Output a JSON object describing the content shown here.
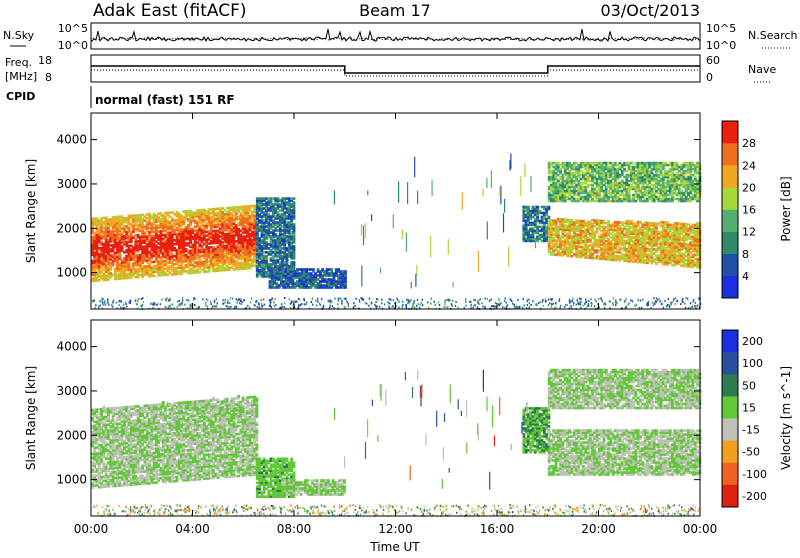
{
  "header": {
    "station": "Adak East (fitACF)",
    "beam": "Beam 17",
    "date": "03/Oct/2013"
  },
  "nsky_panel": {
    "left_label": "N.Sky",
    "right_label": "N.Search",
    "left_ticks": [
      "10^5",
      "10^0"
    ],
    "right_ticks": [
      "10^5",
      "10^0"
    ]
  },
  "freq_panel": {
    "left_label_line1": "Freq.",
    "left_label_line2": "[MHz]",
    "right_label": "Nave",
    "left_ticks": [
      "18",
      "8"
    ],
    "right_ticks": [
      "60",
      "0"
    ],
    "cpid_label": "CPID",
    "cpid_text": "normal (fast) 151 RF"
  },
  "colors": {
    "power_scale": [
      "#1a2ee0",
      "#1f50a8",
      "#2e8a6a",
      "#55b070",
      "#a6d83a",
      "#f0a820",
      "#f07020",
      "#e82010"
    ],
    "velocity_scale": [
      "#1a2ee0",
      "#2a4ea0",
      "#2e7a50",
      "#62c83a",
      "#c0c0b8",
      "#f0a020",
      "#f06020",
      "#e02010"
    ]
  },
  "chart_data": [
    {
      "type": "heatmap",
      "title": "",
      "xlabel": "",
      "ylabel": "Slant Range [km]",
      "x_ticks": [
        "00:00",
        "04:00",
        "08:00",
        "12:00",
        "16:00",
        "20:00",
        "00:00"
      ],
      "y_ticks": [
        "1000",
        "2000",
        "3000",
        "4000"
      ],
      "xlim": [
        0,
        24
      ],
      "ylim": [
        180,
        4600
      ],
      "colorbar": {
        "label": "Power [dB]",
        "ticks": [
          "4",
          "8",
          "12",
          "16",
          "20",
          "24",
          "28"
        ],
        "range": [
          0,
          30
        ]
      },
      "regions": [
        {
          "t0": 0.0,
          "t1": 6.5,
          "r_lo": 800,
          "r_hi": 2200,
          "value": 24,
          "desc": "strong backscatter band rising toward 6 UT"
        },
        {
          "t0": 6.5,
          "t1": 8.0,
          "r_lo": 900,
          "r_hi": 2700,
          "value": 8
        },
        {
          "t0": 7.0,
          "t1": 10.0,
          "r_lo": 650,
          "r_hi": 1100,
          "value": 6
        },
        {
          "t0": 17.0,
          "t1": 18.0,
          "r_lo": 1700,
          "r_hi": 2500,
          "value": 8
        },
        {
          "t0": 18.0,
          "t1": 24.0,
          "r_lo": 1100,
          "r_hi": 2100,
          "value": 20
        },
        {
          "t0": 18.0,
          "t1": 24.0,
          "r_lo": 2600,
          "r_hi": 3500,
          "value": 14
        }
      ]
    },
    {
      "type": "heatmap",
      "title": "",
      "xlabel": "Time UT",
      "ylabel": "Slant Range [km]",
      "x_ticks": [
        "00:00",
        "04:00",
        "08:00",
        "12:00",
        "16:00",
        "20:00",
        "00:00"
      ],
      "y_ticks": [
        "1000",
        "2000",
        "3000",
        "4000"
      ],
      "xlim": [
        0,
        24
      ],
      "ylim": [
        180,
        4600
      ],
      "colorbar": {
        "label": "Velocity [m s^-1]",
        "ticks": [
          "200",
          "100",
          "50",
          "15",
          "-15",
          "-50",
          "-100",
          "-200"
        ],
        "range": [
          -250,
          250
        ]
      },
      "regions": [
        {
          "t0": 0.0,
          "t1": 6.5,
          "r_lo": 800,
          "r_hi": 2600,
          "value": 0,
          "desc": "mostly ground scatter (grey)"
        },
        {
          "t0": 6.5,
          "t1": 8.0,
          "r_lo": 600,
          "r_hi": 1500,
          "value": 40
        },
        {
          "t0": 7.5,
          "t1": 10.0,
          "r_lo": 650,
          "r_hi": 1000,
          "value": 10
        },
        {
          "t0": 17.0,
          "t1": 18.0,
          "r_lo": 1600,
          "r_hi": 2600,
          "value": 60
        },
        {
          "t0": 18.0,
          "t1": 24.0,
          "r_lo": 1100,
          "r_hi": 2100,
          "value": 0
        },
        {
          "t0": 18.0,
          "t1": 24.0,
          "r_lo": 2600,
          "r_hi": 3500,
          "value": 0
        }
      ]
    }
  ]
}
